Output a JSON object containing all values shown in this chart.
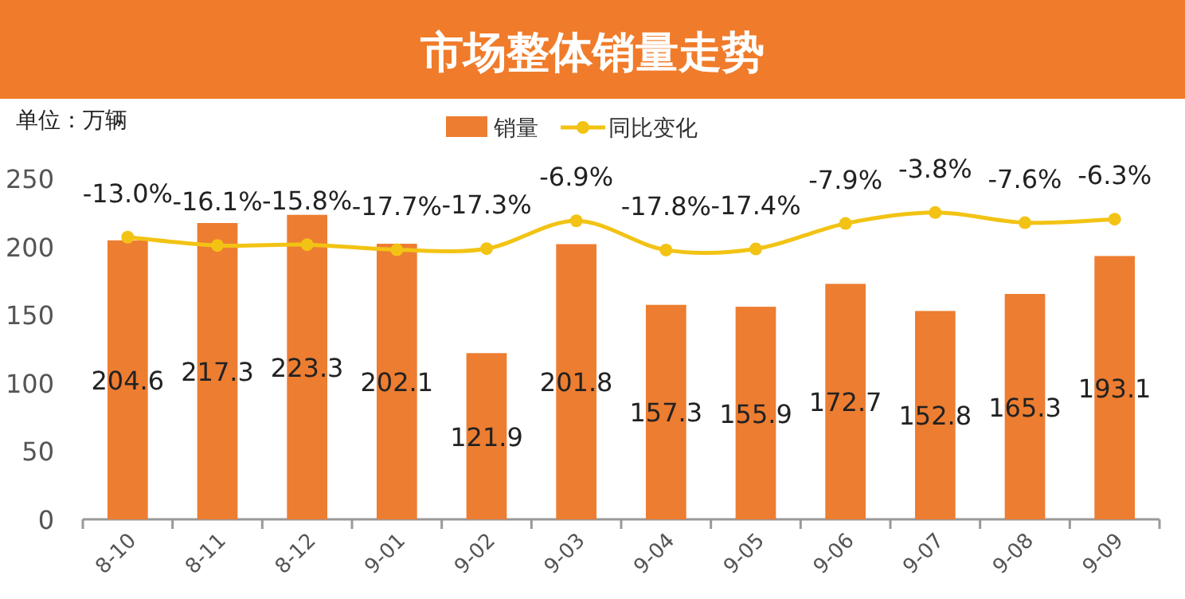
{
  "chart_data": {
    "type": "bar",
    "title": "市场整体销量走势",
    "annotations": [
      "单位：万辆"
    ],
    "categories": [
      "8-10",
      "8-11",
      "8-12",
      "9-01",
      "9-02",
      "9-03",
      "9-04",
      "9-05",
      "9-06",
      "9-07",
      "9-08",
      "9-09"
    ],
    "series": [
      {
        "name": "销量",
        "color": "#ed7d31",
        "values": [
          204.6,
          217.3,
          223.3,
          202.1,
          121.9,
          201.8,
          157.3,
          155.9,
          172.7,
          152.8,
          165.3,
          193.1
        ]
      },
      {
        "name": "同比变化",
        "type": "line",
        "axis": "y2",
        "color": "#f2c314",
        "marker": "circle",
        "values": [
          -13.0,
          -16.1,
          -15.8,
          -17.7,
          -17.3,
          -6.9,
          -17.8,
          -17.4,
          -7.9,
          -3.8,
          -7.6,
          -6.3
        ],
        "value_labels": [
          "-13.0%",
          "-16.1%",
          "-15.8%",
          "-17.7%",
          "-17.3%",
          "-6.9%",
          "-17.8%",
          "-17.4%",
          "-7.9%",
          "-3.8%",
          "-7.6%",
          "-6.3%"
        ]
      }
    ],
    "data_labels": true,
    "ylim": [
      0,
      250
    ],
    "yticks": [
      0,
      50,
      100,
      150,
      200,
      250
    ],
    "legend": "top",
    "grid": false
  }
}
